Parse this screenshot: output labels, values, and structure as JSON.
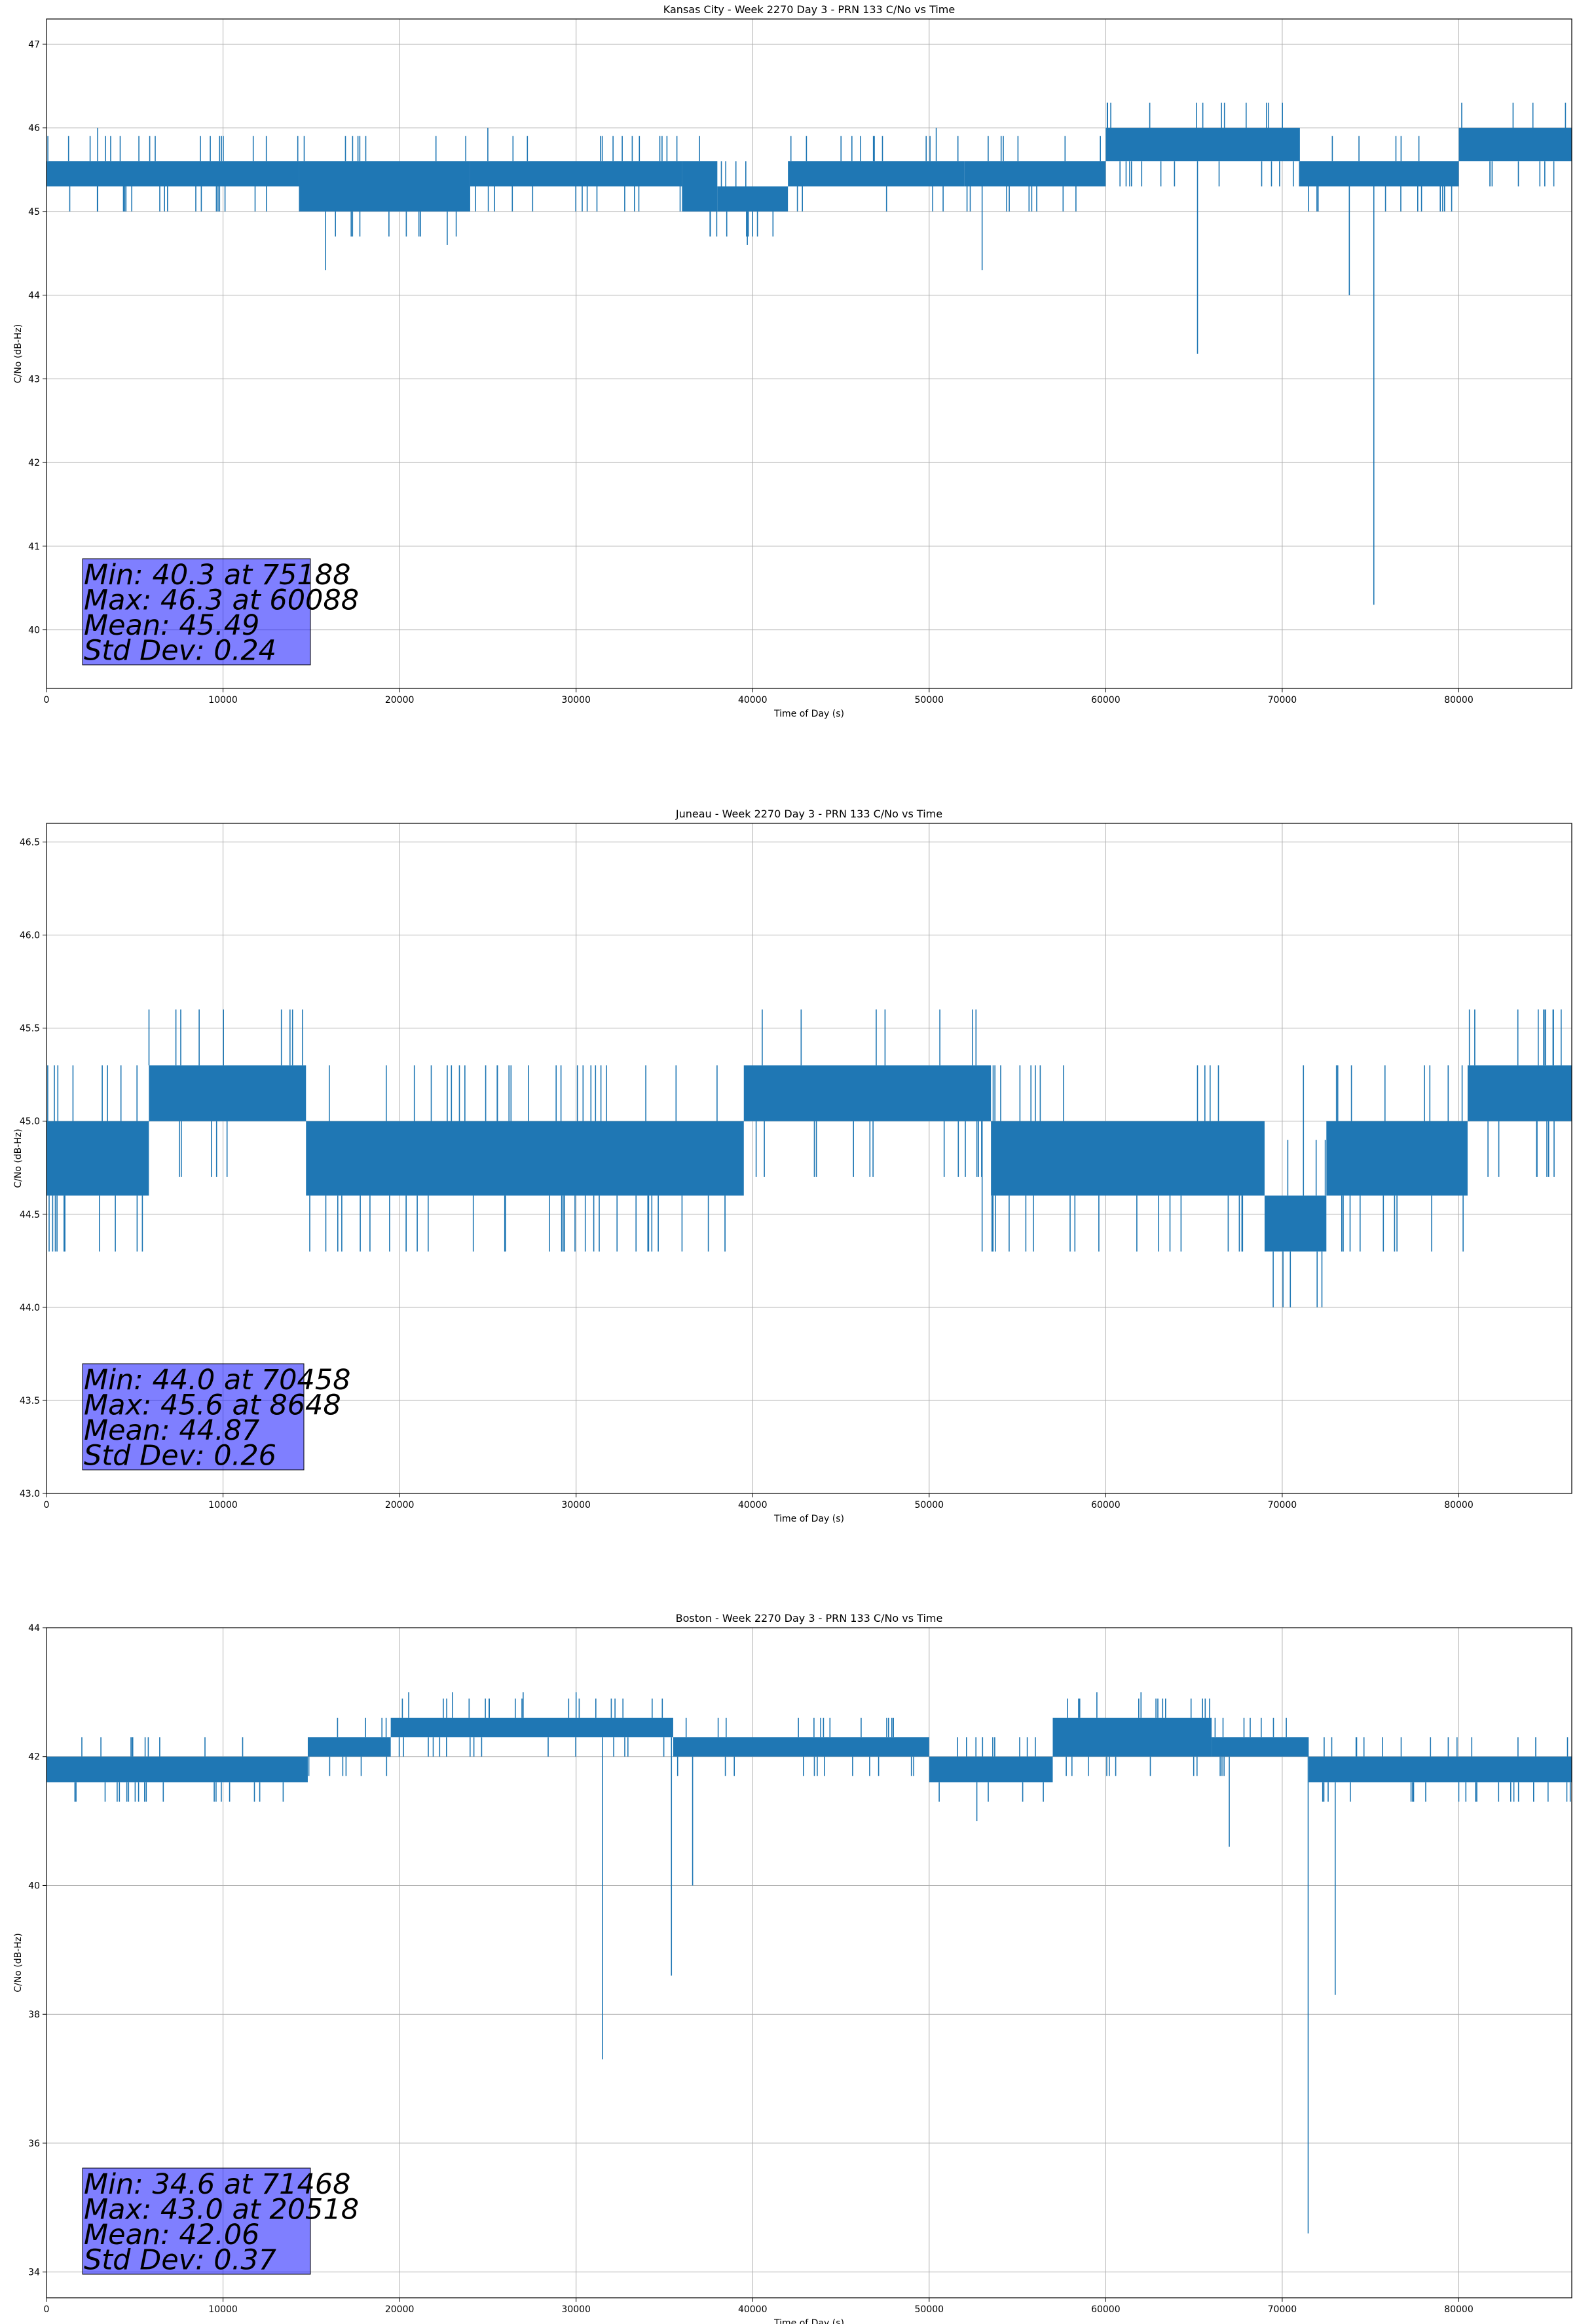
{
  "chart_data": [
    {
      "type": "line",
      "title": "Kansas City - Week 2270 Day 3 - PRN 133 C/No vs Time",
      "xlabel": "Time of Day (s)",
      "ylabel": "C/No (dB-Hz)",
      "xlim": [
        0,
        86400
      ],
      "ylim": [
        39.3,
        47.3
      ],
      "xticks": [
        0,
        10000,
        20000,
        30000,
        40000,
        50000,
        60000,
        70000,
        80000
      ],
      "yticks": [
        40,
        41,
        42,
        43,
        44,
        45,
        46,
        47
      ],
      "ytick_decimals": 0,
      "grid": true,
      "stats": [
        "Min: 40.3 at 75188",
        "Max: 46.3 at 60088",
        "Mean: 45.49",
        "Std Dev: 0.24"
      ],
      "bands": [
        {
          "x": [
            0,
            14300
          ],
          "y": [
            45.3,
            45.6
          ]
        },
        {
          "x": [
            14300,
            24000
          ],
          "y": [
            45.0,
            45.6
          ]
        },
        {
          "x": [
            24000,
            36000
          ],
          "y": [
            45.3,
            45.6
          ]
        },
        {
          "x": [
            36000,
            38000
          ],
          "y": [
            45.0,
            45.6
          ]
        },
        {
          "x": [
            38000,
            42000
          ],
          "y": [
            45.0,
            45.3
          ]
        },
        {
          "x": [
            42000,
            52000
          ],
          "y": [
            45.3,
            45.6
          ]
        },
        {
          "x": [
            52000,
            60000
          ],
          "y": [
            45.3,
            45.6
          ]
        },
        {
          "x": [
            60000,
            71000
          ],
          "y": [
            45.6,
            46.0
          ]
        },
        {
          "x": [
            71000,
            80000
          ],
          "y": [
            45.3,
            45.6
          ]
        },
        {
          "x": [
            80000,
            86400
          ],
          "y": [
            45.6,
            46.0
          ]
        }
      ],
      "spikes": [
        {
          "x": 2900,
          "y": 45.0
        },
        {
          "x": 4500,
          "y": 45.0
        },
        {
          "x": 15800,
          "y": 44.3
        },
        {
          "x": 22700,
          "y": 44.6
        },
        {
          "x": 39700,
          "y": 44.6
        },
        {
          "x": 53000,
          "y": 44.3
        },
        {
          "x": 65200,
          "y": 43.3
        },
        {
          "x": 73800,
          "y": 44.0
        },
        {
          "x": 75188,
          "y": 40.3
        },
        {
          "x": 60088,
          "y": 46.3
        },
        {
          "x": 65500,
          "y": 46.3
        },
        {
          "x": 84200,
          "y": 46.3
        },
        {
          "x": 2900,
          "y": 46.0
        },
        {
          "x": 25000,
          "y": 46.0
        },
        {
          "x": 50400,
          "y": 46.0
        }
      ]
    },
    {
      "type": "line",
      "title": "Juneau - Week 2270 Day 3 - PRN 133 C/No vs Time",
      "xlabel": "Time of Day (s)",
      "ylabel": "C/No (dB-Hz)",
      "xlim": [
        0,
        86400
      ],
      "ylim": [
        43.0,
        46.6
      ],
      "xticks": [
        0,
        10000,
        20000,
        30000,
        40000,
        50000,
        60000,
        70000,
        80000
      ],
      "yticks": [
        43.0,
        43.5,
        44.0,
        44.5,
        45.0,
        45.5,
        46.0,
        46.5
      ],
      "ytick_decimals": 1,
      "grid": true,
      "stats": [
        "Min: 44.0 at 70458",
        "Max: 45.6 at 8648",
        "Mean: 44.87",
        "Std Dev: 0.26"
      ],
      "bands": [
        {
          "x": [
            0,
            5800
          ],
          "y": [
            44.6,
            45.0
          ]
        },
        {
          "x": [
            5800,
            14700
          ],
          "y": [
            45.0,
            45.3
          ]
        },
        {
          "x": [
            14700,
            39500
          ],
          "y": [
            44.6,
            45.0
          ]
        },
        {
          "x": [
            39500,
            53500
          ],
          "y": [
            45.0,
            45.3
          ]
        },
        {
          "x": [
            53500,
            69000
          ],
          "y": [
            44.6,
            45.0
          ]
        },
        {
          "x": [
            69000,
            72500
          ],
          "y": [
            44.3,
            44.6
          ]
        },
        {
          "x": [
            72500,
            80500
          ],
          "y": [
            44.6,
            45.0
          ]
        },
        {
          "x": [
            80500,
            86400
          ],
          "y": [
            45.0,
            45.3
          ]
        }
      ],
      "spikes": [
        {
          "x": 8648,
          "y": 45.6
        },
        {
          "x": 47000,
          "y": 45.6
        },
        {
          "x": 47500,
          "y": 45.6
        },
        {
          "x": 84500,
          "y": 45.6
        },
        {
          "x": 85800,
          "y": 45.6
        },
        {
          "x": 70458,
          "y": 44.0
        },
        {
          "x": 500,
          "y": 44.3
        },
        {
          "x": 3000,
          "y": 44.3
        },
        {
          "x": 16500,
          "y": 44.3
        },
        {
          "x": 21000,
          "y": 44.3
        },
        {
          "x": 26000,
          "y": 44.3
        },
        {
          "x": 31000,
          "y": 44.3
        },
        {
          "x": 36000,
          "y": 44.3
        },
        {
          "x": 53000,
          "y": 44.3
        },
        {
          "x": 63000,
          "y": 44.3
        },
        {
          "x": 76500,
          "y": 44.3
        },
        {
          "x": 23700,
          "y": 45.3
        },
        {
          "x": 1500,
          "y": 45.3
        },
        {
          "x": 71200,
          "y": 45.3
        }
      ]
    },
    {
      "type": "line",
      "title": "Boston - Week 2270 Day 3 - PRN 133 C/No vs Time",
      "xlabel": "Time of Day (s)",
      "ylabel": "C/No (dB-Hz)",
      "xlim": [
        0,
        86400
      ],
      "ylim": [
        33.6,
        44.0
      ],
      "xticks": [
        0,
        10000,
        20000,
        30000,
        40000,
        50000,
        60000,
        70000,
        80000
      ],
      "yticks": [
        34,
        36,
        38,
        40,
        42,
        44
      ],
      "ytick_decimals": 0,
      "grid": true,
      "stats": [
        "Min: 34.6 at 71468",
        "Max: 43.0 at 20518",
        "Mean: 42.06",
        "Std Dev: 0.37"
      ],
      "bands": [
        {
          "x": [
            0,
            14800
          ],
          "y": [
            41.6,
            42.0
          ]
        },
        {
          "x": [
            14800,
            19500
          ],
          "y": [
            42.0,
            42.3
          ]
        },
        {
          "x": [
            19500,
            35500
          ],
          "y": [
            42.3,
            42.6
          ]
        },
        {
          "x": [
            35500,
            50000
          ],
          "y": [
            42.0,
            42.3
          ]
        },
        {
          "x": [
            50000,
            57000
          ],
          "y": [
            41.6,
            42.0
          ]
        },
        {
          "x": [
            57000,
            66000
          ],
          "y": [
            42.0,
            42.6
          ]
        },
        {
          "x": [
            66000,
            71500
          ],
          "y": [
            42.0,
            42.3
          ]
        },
        {
          "x": [
            71500,
            86400
          ],
          "y": [
            41.6,
            42.0
          ]
        }
      ],
      "spikes": [
        {
          "x": 20518,
          "y": 43.0
        },
        {
          "x": 23000,
          "y": 43.0
        },
        {
          "x": 27000,
          "y": 43.0
        },
        {
          "x": 30000,
          "y": 43.0
        },
        {
          "x": 59500,
          "y": 43.0
        },
        {
          "x": 62000,
          "y": 43.0
        },
        {
          "x": 31500,
          "y": 37.3
        },
        {
          "x": 35400,
          "y": 38.6
        },
        {
          "x": 36600,
          "y": 40.0
        },
        {
          "x": 67000,
          "y": 40.6
        },
        {
          "x": 71468,
          "y": 34.6
        },
        {
          "x": 73000,
          "y": 38.3
        },
        {
          "x": 52700,
          "y": 41.0
        },
        {
          "x": 9500,
          "y": 41.3
        },
        {
          "x": 80000,
          "y": 41.3
        }
      ]
    }
  ]
}
